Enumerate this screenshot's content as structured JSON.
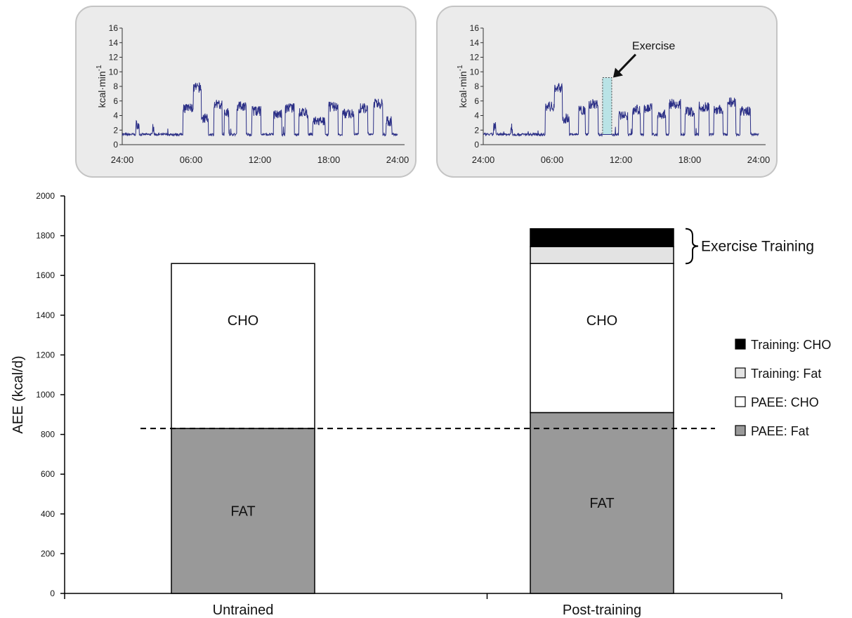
{
  "chart_data": [
    {
      "type": "line",
      "ylabel": "kcal·min-1",
      "ylabel_main": "kcal·min",
      "ylabel_sup": "-1",
      "ylim": [
        0,
        16
      ],
      "yticks": [
        0,
        2,
        4,
        6,
        8,
        10,
        12,
        14,
        16
      ],
      "xtick_labels": [
        "24:00",
        "06:00",
        "12:00",
        "18:00",
        "24:00"
      ],
      "x_hours": [
        0,
        6,
        12,
        18,
        24
      ],
      "series_color": "#2b2f86",
      "baseline": 1.4,
      "bursts": [
        {
          "start": 1.2,
          "end": 1.45,
          "level": 2.7
        },
        {
          "start": 2.6,
          "end": 2.75,
          "level": 2.2
        },
        {
          "start": 5.3,
          "end": 6.2,
          "level": 5.0
        },
        {
          "start": 6.2,
          "end": 6.9,
          "level": 7.8
        },
        {
          "start": 6.9,
          "end": 7.5,
          "level": 3.6
        },
        {
          "start": 8.0,
          "end": 8.7,
          "level": 5.5
        },
        {
          "start": 8.9,
          "end": 9.3,
          "level": 4.5
        },
        {
          "start": 10.0,
          "end": 10.8,
          "level": 5.3
        },
        {
          "start": 11.3,
          "end": 12.1,
          "level": 4.6
        },
        {
          "start": 13.2,
          "end": 13.9,
          "level": 4.2
        },
        {
          "start": 14.2,
          "end": 15.0,
          "level": 5.0
        },
        {
          "start": 15.4,
          "end": 16.2,
          "level": 4.4
        },
        {
          "start": 16.6,
          "end": 17.7,
          "level": 3.2
        },
        {
          "start": 18.0,
          "end": 18.8,
          "level": 5.2
        },
        {
          "start": 19.2,
          "end": 20.2,
          "level": 4.3
        },
        {
          "start": 20.6,
          "end": 21.4,
          "level": 5.0
        },
        {
          "start": 21.9,
          "end": 22.7,
          "level": 5.6
        },
        {
          "start": 23.0,
          "end": 23.5,
          "level": 3.2
        }
      ]
    },
    {
      "type": "line",
      "ylabel": "kcal·min-1",
      "ylabel_main": "kcal·min",
      "ylabel_sup": "-1",
      "ylim": [
        0,
        16
      ],
      "yticks": [
        0,
        2,
        4,
        6,
        8,
        10,
        12,
        14,
        16
      ],
      "xtick_labels": [
        "24:00",
        "06:00",
        "12:00",
        "18:00",
        "24:00"
      ],
      "x_hours": [
        0,
        6,
        12,
        18,
        24
      ],
      "series_color": "#2b2f86",
      "baseline": 1.4,
      "exercise": {
        "start": 10.4,
        "end": 11.2,
        "level": 9.2,
        "label": "Exercise",
        "fill": "#b9e3e6"
      },
      "bursts": [
        {
          "start": 0.9,
          "end": 1.1,
          "level": 2.5
        },
        {
          "start": 2.4,
          "end": 2.55,
          "level": 2.2
        },
        {
          "start": 5.4,
          "end": 6.2,
          "level": 5.2
        },
        {
          "start": 6.2,
          "end": 6.9,
          "level": 7.8
        },
        {
          "start": 6.9,
          "end": 7.5,
          "level": 3.6
        },
        {
          "start": 8.3,
          "end": 8.9,
          "level": 4.8
        },
        {
          "start": 9.2,
          "end": 10.0,
          "level": 5.6
        },
        {
          "start": 11.8,
          "end": 12.6,
          "level": 4.0
        },
        {
          "start": 13.0,
          "end": 13.7,
          "level": 4.8
        },
        {
          "start": 14.0,
          "end": 14.7,
          "level": 5.0
        },
        {
          "start": 15.2,
          "end": 15.9,
          "level": 4.2
        },
        {
          "start": 16.2,
          "end": 17.2,
          "level": 5.6
        },
        {
          "start": 17.6,
          "end": 18.4,
          "level": 4.5
        },
        {
          "start": 18.8,
          "end": 19.7,
          "level": 5.2
        },
        {
          "start": 20.1,
          "end": 20.9,
          "level": 4.8
        },
        {
          "start": 21.3,
          "end": 22.0,
          "level": 5.8
        },
        {
          "start": 22.4,
          "end": 23.3,
          "level": 4.6
        }
      ]
    },
    {
      "type": "bar",
      "stacked": true,
      "ylabel": "AEE (kcal/d)",
      "ylim": [
        0,
        2000
      ],
      "yticks": [
        0,
        200,
        400,
        600,
        800,
        1000,
        1200,
        1400,
        1600,
        1800,
        2000
      ],
      "categories": [
        "Untrained",
        "Post-training"
      ],
      "series": [
        {
          "name": "PAEE: Fat",
          "color": "#999999",
          "values": [
            830,
            910
          ]
        },
        {
          "name": "PAEE: CHO",
          "color": "#ffffff",
          "values": [
            830,
            750
          ]
        },
        {
          "name": "Training: Fat",
          "color": "#e3e3e3",
          "values": [
            0,
            85
          ]
        },
        {
          "name": "Training: CHO",
          "color": "#000000",
          "values": [
            0,
            90
          ]
        }
      ],
      "bar_labels": [
        {
          "bar": 0,
          "text": "FAT",
          "value": 415
        },
        {
          "bar": 0,
          "text": "CHO",
          "value": 1375
        },
        {
          "bar": 1,
          "text": "FAT",
          "value": 455
        },
        {
          "bar": 1,
          "text": "CHO",
          "value": 1375
        }
      ],
      "reference_line": 830,
      "bracket_label": "Exercise Training",
      "legend_order": [
        "Training: CHO",
        "Training: Fat",
        "PAEE: CHO",
        "PAEE: Fat"
      ],
      "legend_position": "right"
    }
  ]
}
